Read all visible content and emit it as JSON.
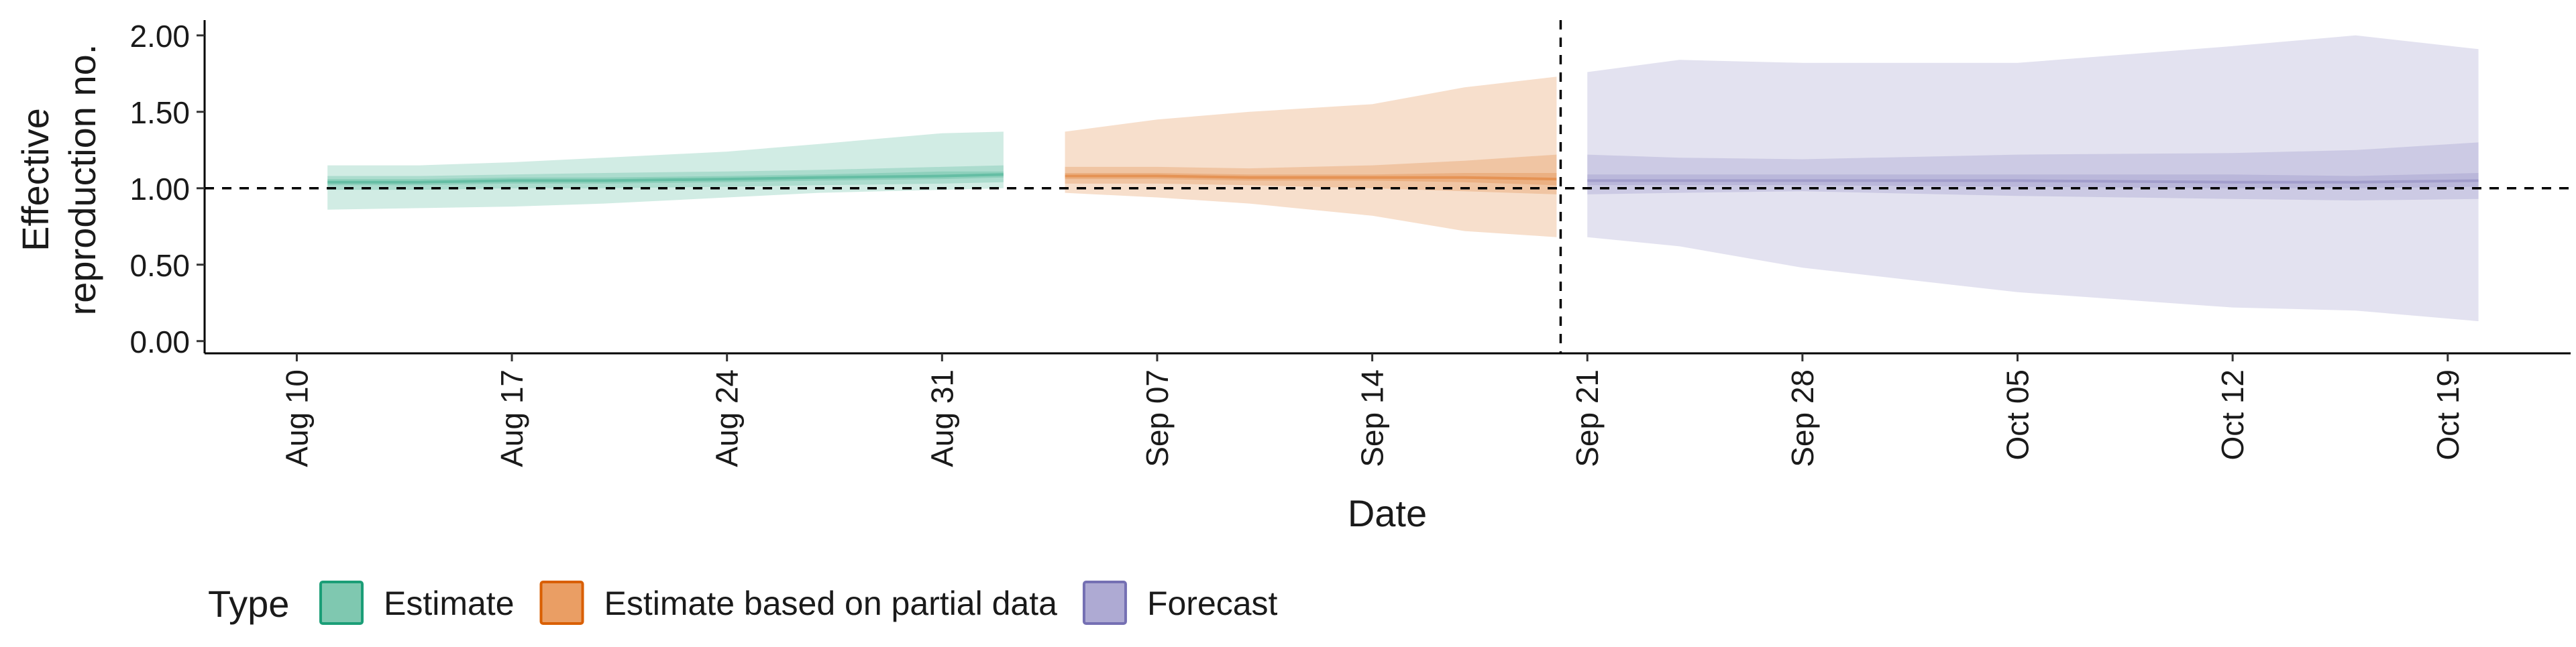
{
  "chart_data": {
    "type": "area",
    "xlabel": "Date",
    "ylabel_lines": [
      "Effective",
      "reproduction no."
    ],
    "x_ticks": [
      "Aug 10",
      "Aug 17",
      "Aug 24",
      "Aug 31",
      "Sep 07",
      "Sep 14",
      "Sep 21",
      "Sep 28",
      "Oct 05",
      "Oct 12",
      "Oct 19"
    ],
    "x_tick_dates": [
      "2020-08-10",
      "2020-08-17",
      "2020-08-24",
      "2020-08-31",
      "2020-09-07",
      "2020-09-14",
      "2020-09-21",
      "2020-09-28",
      "2020-10-05",
      "2020-10-12",
      "2020-10-19"
    ],
    "x_range": [
      "2020-08-07",
      "2020-10-23"
    ],
    "y_ticks": [
      "0.00",
      "0.50",
      "1.00",
      "1.50",
      "2.00"
    ],
    "y_tick_values": [
      0,
      0.5,
      1,
      1.5,
      2
    ],
    "ylim": [
      -0.08,
      2.1
    ],
    "reference_hline": 1.0,
    "reference_vline": "2020-09-20",
    "legend": {
      "title": "Type",
      "position": "bottom-left",
      "entries": [
        {
          "label": "Estimate",
          "fill": "#7fc8b0",
          "stroke": "#1b9e77"
        },
        {
          "label": "Estimate based on partial data",
          "fill": "#ea9e64",
          "stroke": "#d95f02"
        },
        {
          "label": "Forecast",
          "fill": "#aeaad3",
          "stroke": "#7570b3"
        }
      ]
    },
    "series": [
      {
        "name": "Estimate",
        "color": "#1b9e77",
        "points": [
          {
            "date": "2020-08-11",
            "median": 1.04,
            "lower_20": 1.02,
            "upper_20": 1.06,
            "lower_50": 0.99,
            "upper_50": 1.08,
            "lower_90": 0.86,
            "upper_90": 1.15
          },
          {
            "date": "2020-08-14",
            "median": 1.04,
            "lower_20": 1.02,
            "upper_20": 1.06,
            "lower_50": 0.99,
            "upper_50": 1.08,
            "lower_90": 0.87,
            "upper_90": 1.15
          },
          {
            "date": "2020-08-17",
            "median": 1.05,
            "lower_20": 1.03,
            "upper_20": 1.07,
            "lower_50": 1.0,
            "upper_50": 1.09,
            "lower_90": 0.88,
            "upper_90": 1.17
          },
          {
            "date": "2020-08-20",
            "median": 1.05,
            "lower_20": 1.03,
            "upper_20": 1.07,
            "lower_50": 1.0,
            "upper_50": 1.1,
            "lower_90": 0.9,
            "upper_90": 1.2
          },
          {
            "date": "2020-08-24",
            "median": 1.06,
            "lower_20": 1.04,
            "upper_20": 1.08,
            "lower_50": 1.01,
            "upper_50": 1.11,
            "lower_90": 0.94,
            "upper_90": 1.24
          },
          {
            "date": "2020-08-27",
            "median": 1.07,
            "lower_20": 1.05,
            "upper_20": 1.09,
            "lower_50": 1.02,
            "upper_50": 1.12,
            "lower_90": 0.97,
            "upper_90": 1.29
          },
          {
            "date": "2020-08-31",
            "median": 1.08,
            "lower_20": 1.06,
            "upper_20": 1.11,
            "lower_50": 1.03,
            "upper_50": 1.14,
            "lower_90": 0.99,
            "upper_90": 1.36
          },
          {
            "date": "2020-09-02",
            "median": 1.09,
            "lower_20": 1.07,
            "upper_20": 1.11,
            "lower_50": 1.04,
            "upper_50": 1.15,
            "lower_90": 1.0,
            "upper_90": 1.37
          }
        ]
      },
      {
        "name": "Estimate based on partial data",
        "color": "#d95f02",
        "points": [
          {
            "date": "2020-09-04",
            "median": 1.08,
            "lower_20": 1.06,
            "upper_20": 1.1,
            "lower_50": 1.03,
            "upper_50": 1.14,
            "lower_90": 0.97,
            "upper_90": 1.37
          },
          {
            "date": "2020-09-07",
            "median": 1.08,
            "lower_20": 1.06,
            "upper_20": 1.1,
            "lower_50": 1.03,
            "upper_50": 1.14,
            "lower_90": 0.94,
            "upper_90": 1.45
          },
          {
            "date": "2020-09-10",
            "median": 1.07,
            "lower_20": 1.05,
            "upper_20": 1.09,
            "lower_50": 1.02,
            "upper_50": 1.13,
            "lower_90": 0.9,
            "upper_90": 1.5
          },
          {
            "date": "2020-09-14",
            "median": 1.07,
            "lower_20": 1.05,
            "upper_20": 1.09,
            "lower_50": 1.0,
            "upper_50": 1.15,
            "lower_90": 0.82,
            "upper_90": 1.55
          },
          {
            "date": "2020-09-17",
            "median": 1.07,
            "lower_20": 1.04,
            "upper_20": 1.1,
            "lower_50": 0.98,
            "upper_50": 1.18,
            "lower_90": 0.72,
            "upper_90": 1.66
          },
          {
            "date": "2020-09-20",
            "median": 1.06,
            "lower_20": 1.02,
            "upper_20": 1.1,
            "lower_50": 0.96,
            "upper_50": 1.22,
            "lower_90": 0.68,
            "upper_90": 1.73
          }
        ]
      },
      {
        "name": "Forecast",
        "color": "#7570b3",
        "points": [
          {
            "date": "2020-09-21",
            "median": 1.05,
            "lower_20": 1.02,
            "upper_20": 1.09,
            "lower_50": 0.96,
            "upper_50": 1.22,
            "lower_90": 0.68,
            "upper_90": 1.76
          },
          {
            "date": "2020-09-24",
            "median": 1.05,
            "lower_20": 1.02,
            "upper_20": 1.09,
            "lower_50": 0.97,
            "upper_50": 1.2,
            "lower_90": 0.62,
            "upper_90": 1.84
          },
          {
            "date": "2020-09-28",
            "median": 1.05,
            "lower_20": 1.02,
            "upper_20": 1.09,
            "lower_50": 0.98,
            "upper_50": 1.19,
            "lower_90": 0.48,
            "upper_90": 1.82
          },
          {
            "date": "2020-10-05",
            "median": 1.05,
            "lower_20": 1.01,
            "upper_20": 1.09,
            "lower_50": 0.95,
            "upper_50": 1.22,
            "lower_90": 0.32,
            "upper_90": 1.82
          },
          {
            "date": "2020-10-12",
            "median": 1.04,
            "lower_20": 1.0,
            "upper_20": 1.09,
            "lower_50": 0.93,
            "upper_50": 1.23,
            "lower_90": 0.22,
            "upper_90": 1.93
          },
          {
            "date": "2020-10-16",
            "median": 1.04,
            "lower_20": 1.0,
            "upper_20": 1.08,
            "lower_50": 0.92,
            "upper_50": 1.25,
            "lower_90": 0.2,
            "upper_90": 2.0
          },
          {
            "date": "2020-10-20",
            "median": 1.05,
            "lower_20": 1.01,
            "upper_20": 1.1,
            "lower_50": 0.93,
            "upper_50": 1.3,
            "lower_90": 0.13,
            "upper_90": 1.91
          }
        ]
      }
    ]
  }
}
